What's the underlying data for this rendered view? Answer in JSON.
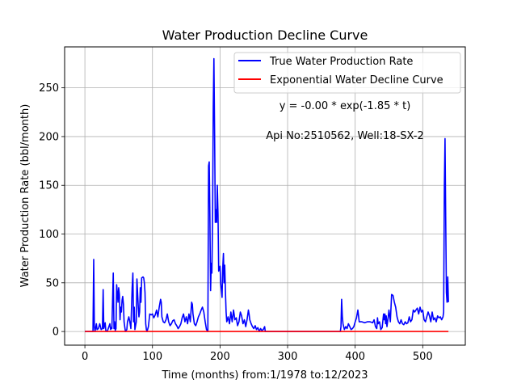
{
  "chart_data": {
    "type": "line",
    "title": "Water Production Decline Curve",
    "xlabel": "Time (months) from:1/1978 to:12/2023",
    "ylabel": "Water Production Rate (bbl/month)",
    "xlim": [
      -30,
      563
    ],
    "ylim": [
      -14,
      292
    ],
    "xticks": [
      0,
      100,
      200,
      300,
      400,
      500
    ],
    "yticks": [
      0,
      50,
      100,
      150,
      200,
      250
    ],
    "grid": true,
    "legend_position": "top-right",
    "annotations": [
      "y = -0.00 * exp(-1.85 * t)",
      "Api No:2510562, Well:18-SX-2"
    ],
    "series": [
      {
        "name": "True Water Production Rate",
        "color": "#0000ff",
        "points": [
          [
            0,
            0
          ],
          [
            12,
            0
          ],
          [
            13,
            74
          ],
          [
            14,
            5
          ],
          [
            15,
            0
          ],
          [
            17,
            8
          ],
          [
            18,
            2
          ],
          [
            20,
            3
          ],
          [
            22,
            8
          ],
          [
            24,
            2
          ],
          [
            26,
            3
          ],
          [
            27,
            43
          ],
          [
            28,
            3
          ],
          [
            30,
            9
          ],
          [
            31,
            1
          ],
          [
            33,
            0
          ],
          [
            35,
            4
          ],
          [
            37,
            8
          ],
          [
            38,
            2
          ],
          [
            39,
            4
          ],
          [
            40,
            3
          ],
          [
            42,
            60
          ],
          [
            43,
            3
          ],
          [
            44,
            10
          ],
          [
            45,
            1
          ],
          [
            46,
            3
          ],
          [
            47,
            48
          ],
          [
            48,
            40
          ],
          [
            49,
            30
          ],
          [
            50,
            45
          ],
          [
            51,
            38
          ],
          [
            52,
            12
          ],
          [
            53,
            25
          ],
          [
            54,
            20
          ],
          [
            55,
            32
          ],
          [
            56,
            36
          ],
          [
            57,
            28
          ],
          [
            58,
            10
          ],
          [
            59,
            5
          ],
          [
            60,
            0
          ],
          [
            62,
            2
          ],
          [
            63,
            10
          ],
          [
            65,
            15
          ],
          [
            67,
            8
          ],
          [
            68,
            3
          ],
          [
            70,
            45
          ],
          [
            71,
            60
          ],
          [
            72,
            10
          ],
          [
            73,
            25
          ],
          [
            74,
            2
          ],
          [
            76,
            10
          ],
          [
            77,
            54
          ],
          [
            78,
            40
          ],
          [
            79,
            25
          ],
          [
            80,
            15
          ],
          [
            81,
            20
          ],
          [
            82,
            45
          ],
          [
            83,
            30
          ],
          [
            84,
            55
          ],
          [
            86,
            56
          ],
          [
            87,
            55
          ],
          [
            88,
            50
          ],
          [
            89,
            40
          ],
          [
            90,
            8
          ],
          [
            91,
            2
          ],
          [
            92,
            0
          ],
          [
            94,
            5
          ],
          [
            96,
            18
          ],
          [
            98,
            17
          ],
          [
            100,
            18
          ],
          [
            102,
            14
          ],
          [
            104,
            17
          ],
          [
            106,
            22
          ],
          [
            108,
            15
          ],
          [
            110,
            25
          ],
          [
            112,
            33
          ],
          [
            113,
            30
          ],
          [
            114,
            15
          ],
          [
            116,
            10
          ],
          [
            118,
            9
          ],
          [
            120,
            12
          ],
          [
            122,
            18
          ],
          [
            124,
            10
          ],
          [
            126,
            6
          ],
          [
            128,
            8
          ],
          [
            130,
            11
          ],
          [
            132,
            12
          ],
          [
            134,
            8
          ],
          [
            136,
            6
          ],
          [
            138,
            3
          ],
          [
            140,
            5
          ],
          [
            142,
            8
          ],
          [
            144,
            14
          ],
          [
            146,
            18
          ],
          [
            148,
            10
          ],
          [
            150,
            15
          ],
          [
            152,
            8
          ],
          [
            154,
            18
          ],
          [
            156,
            10
          ],
          [
            158,
            30
          ],
          [
            159,
            28
          ],
          [
            160,
            18
          ],
          [
            162,
            8
          ],
          [
            164,
            6
          ],
          [
            166,
            10
          ],
          [
            168,
            15
          ],
          [
            170,
            18
          ],
          [
            172,
            22
          ],
          [
            174,
            25
          ],
          [
            176,
            20
          ],
          [
            178,
            10
          ],
          [
            180,
            2
          ],
          [
            182,
            0
          ],
          [
            183,
            170
          ],
          [
            184,
            174
          ],
          [
            185,
            120
          ],
          [
            186,
            42
          ],
          [
            187,
            70
          ],
          [
            188,
            60
          ],
          [
            189,
            120
          ],
          [
            190,
            230
          ],
          [
            191,
            280
          ],
          [
            192,
            200
          ],
          [
            193,
            112
          ],
          [
            194,
            125
          ],
          [
            195,
            112
          ],
          [
            196,
            150
          ],
          [
            197,
            120
          ],
          [
            198,
            62
          ],
          [
            200,
            67
          ],
          [
            201,
            50
          ],
          [
            203,
            35
          ],
          [
            204,
            65
          ],
          [
            205,
            80
          ],
          [
            206,
            50
          ],
          [
            207,
            68
          ],
          [
            208,
            40
          ],
          [
            209,
            20
          ],
          [
            210,
            10
          ],
          [
            212,
            15
          ],
          [
            214,
            8
          ],
          [
            216,
            20
          ],
          [
            218,
            10
          ],
          [
            220,
            22
          ],
          [
            222,
            12
          ],
          [
            224,
            14
          ],
          [
            226,
            6
          ],
          [
            228,
            10
          ],
          [
            230,
            20
          ],
          [
            232,
            16
          ],
          [
            234,
            8
          ],
          [
            236,
            12
          ],
          [
            238,
            5
          ],
          [
            240,
            12
          ],
          [
            242,
            22
          ],
          [
            243,
            18
          ],
          [
            244,
            12
          ],
          [
            246,
            8
          ],
          [
            248,
            5
          ],
          [
            250,
            3
          ],
          [
            252,
            6
          ],
          [
            254,
            2
          ],
          [
            256,
            4
          ],
          [
            258,
            0
          ],
          [
            260,
            3
          ],
          [
            262,
            1
          ],
          [
            264,
            2
          ],
          [
            266,
            5
          ],
          [
            267,
            0
          ],
          [
            300,
            0
          ],
          [
            350,
            0
          ],
          [
            378,
            0
          ],
          [
            379,
            5
          ],
          [
            380,
            33
          ],
          [
            381,
            15
          ],
          [
            382,
            8
          ],
          [
            384,
            2
          ],
          [
            386,
            5
          ],
          [
            388,
            3
          ],
          [
            390,
            8
          ],
          [
            392,
            5
          ],
          [
            394,
            2
          ],
          [
            396,
            3
          ],
          [
            398,
            5
          ],
          [
            400,
            10
          ],
          [
            402,
            14
          ],
          [
            404,
            22
          ],
          [
            406,
            10
          ],
          [
            410,
            10
          ],
          [
            414,
            9
          ],
          [
            418,
            10
          ],
          [
            422,
            10
          ],
          [
            426,
            9
          ],
          [
            428,
            12
          ],
          [
            430,
            5
          ],
          [
            432,
            3
          ],
          [
            433,
            14
          ],
          [
            434,
            8
          ],
          [
            436,
            10
          ],
          [
            438,
            2
          ],
          [
            440,
            4
          ],
          [
            442,
            18
          ],
          [
            443,
            12
          ],
          [
            444,
            18
          ],
          [
            445,
            8
          ],
          [
            446,
            16
          ],
          [
            447,
            5
          ],
          [
            448,
            10
          ],
          [
            449,
            15
          ],
          [
            450,
            22
          ],
          [
            452,
            10
          ],
          [
            454,
            38
          ],
          [
            456,
            37
          ],
          [
            458,
            30
          ],
          [
            460,
            25
          ],
          [
            462,
            15
          ],
          [
            464,
            10
          ],
          [
            466,
            8
          ],
          [
            468,
            12
          ],
          [
            470,
            8
          ],
          [
            472,
            7
          ],
          [
            474,
            10
          ],
          [
            476,
            8
          ],
          [
            478,
            9
          ],
          [
            480,
            15
          ],
          [
            482,
            10
          ],
          [
            484,
            12
          ],
          [
            486,
            22
          ],
          [
            488,
            20
          ],
          [
            490,
            22
          ],
          [
            492,
            24
          ],
          [
            494,
            18
          ],
          [
            496,
            25
          ],
          [
            498,
            20
          ],
          [
            500,
            22
          ],
          [
            502,
            12
          ],
          [
            504,
            10
          ],
          [
            506,
            15
          ],
          [
            508,
            20
          ],
          [
            510,
            16
          ],
          [
            512,
            10
          ],
          [
            514,
            20
          ],
          [
            516,
            12
          ],
          [
            518,
            14
          ],
          [
            520,
            10
          ],
          [
            522,
            16
          ],
          [
            524,
            14
          ],
          [
            526,
            15
          ],
          [
            528,
            12
          ],
          [
            530,
            15
          ],
          [
            531,
            20
          ],
          [
            532,
            150
          ],
          [
            533,
            198
          ],
          [
            534,
            120
          ],
          [
            535,
            40
          ],
          [
            536,
            30
          ],
          [
            537,
            56
          ],
          [
            538,
            30
          ]
        ]
      },
      {
        "name": "Exponential Water Decline Curve",
        "color": "#ff0000",
        "points": [
          [
            0,
            0
          ],
          [
            538,
            0
          ]
        ]
      }
    ]
  }
}
